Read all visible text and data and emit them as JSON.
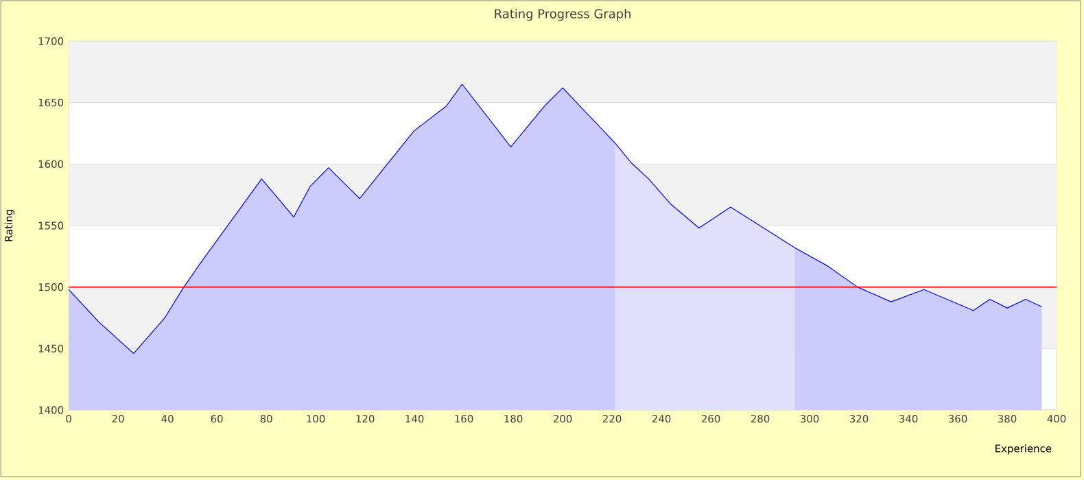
{
  "chart_data": {
    "type": "area",
    "title": "Rating Progress Graph",
    "xlabel": "Experience",
    "ylabel": "Rating",
    "xlim": [
      0,
      400
    ],
    "xticks": [
      0,
      20,
      40,
      60,
      80,
      100,
      120,
      140,
      160,
      180,
      200,
      220,
      240,
      260,
      280,
      300,
      320,
      340,
      360,
      380,
      400
    ],
    "ylim": [
      1400,
      1700
    ],
    "yticks": [
      1400,
      1450,
      1500,
      1550,
      1600,
      1650,
      1700
    ],
    "grid": "y",
    "ref_lines": [
      {
        "axis": "y",
        "value": 1500,
        "color": "#ff0000"
      }
    ],
    "series": [
      {
        "color": "#ccccfc",
        "x": [
          0,
          12,
          26.3,
          38.9,
          46.3,
          52.8,
          78.1,
          91.1,
          97.8,
          105.2,
          117.8,
          127.8,
          139.8,
          152.8,
          159.3,
          179,
          193,
          200,
          221.3
        ],
        "values": [
          1498,
          1472,
          1446,
          1475,
          1499,
          1518,
          1588,
          1557,
          1582,
          1597,
          1572,
          1597,
          1627,
          1647,
          1665,
          1614,
          1648,
          1662,
          1617
        ]
      },
      {
        "color": "#e0e0fc",
        "x": [
          221.3,
          227.8,
          234.8,
          243.5,
          255.2,
          268,
          294
        ],
        "values": [
          1617,
          1601,
          1588,
          1568,
          1548,
          1565,
          1532
        ]
      },
      {
        "color": "#ccccfc",
        "x": [
          294,
          307.4,
          319.4,
          333,
          346.3,
          366.3,
          373,
          380,
          387.4,
          394
        ],
        "values": [
          1532,
          1517,
          1500,
          1488,
          1498,
          1481,
          1490,
          1483,
          1490,
          1484
        ]
      }
    ]
  }
}
